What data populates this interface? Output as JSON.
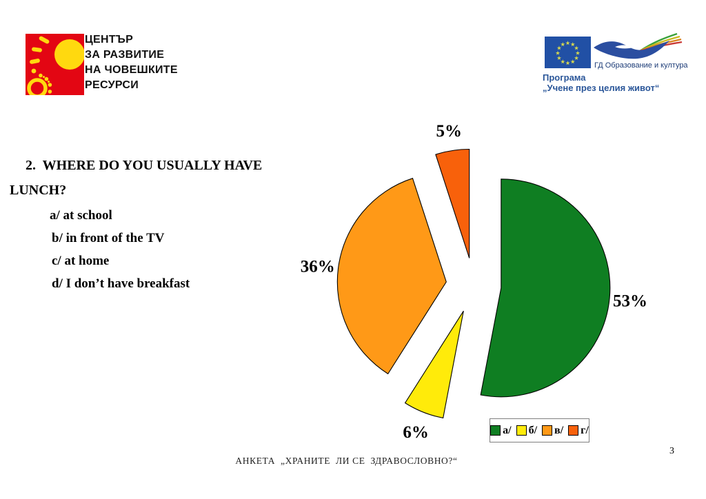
{
  "page": {
    "number": "3"
  },
  "colors": {
    "logo_red": "#E30613",
    "logo_yellow": "#FFD90F",
    "eu_flag_blue": "#2150A5",
    "eu_star_yellow": "#D8D94E",
    "bird_blue": "#2B4EA0",
    "ribbon_colors": [
      "#3AA23A",
      "#C8B920",
      "#D98321",
      "#C93A36"
    ],
    "program_text_blue": "#2A5699"
  },
  "header": {
    "org_logo_lines": [
      "ЦЕНТЪР",
      "ЗА РАЗВИТИЕ",
      "НА ЧОВЕШКИТЕ",
      "РЕСУРСИ"
    ],
    "eu_caption": "ГД  Образование и култура",
    "program_name": "Програма",
    "program_subtitle": "„Учене през целия живот“"
  },
  "question": {
    "line1": "2.  WHERE DO YOU USUALLY HAVE",
    "line2": "LUNCH?",
    "options": [
      "a/ at school",
      "b/ in front of the TV",
      "c/ at home",
      "d/ I don’t have breakfast"
    ]
  },
  "chart_data": {
    "type": "pie",
    "exploded": true,
    "start_angle_deg": 0,
    "direction": "clockwise",
    "legend_position": "bottom-right",
    "grid": false,
    "slices": [
      {
        "legend_label": "a/",
        "option_text": "at school",
        "value": 53,
        "data_label": "53%",
        "color": "#0F7E22"
      },
      {
        "legend_label": "б/",
        "option_text": "in front of the TV",
        "value": 6,
        "data_label": "6%",
        "color": "#FFEB0A"
      },
      {
        "legend_label": "в/",
        "option_text": "at home",
        "value": 36,
        "data_label": "36%",
        "color": "#FF9917"
      },
      {
        "legend_label": "г/",
        "option_text": "I don’t have breakfast",
        "value": 5,
        "data_label": "5%",
        "color": "#F8610B"
      }
    ]
  },
  "footer": {
    "survey_title": "АНКЕТА  „ХРАНИТЕ  ЛИ СЕ  ЗДРАВОСЛОВНО?“"
  }
}
